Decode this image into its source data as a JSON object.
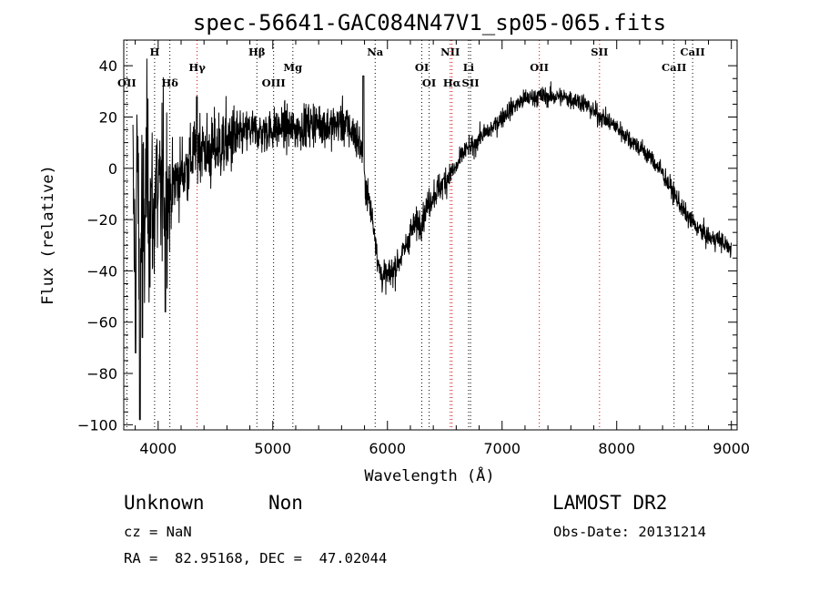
{
  "chart_data": {
    "type": "line",
    "title": "spec-56641-GAC084N47V1_sp05-065.fits",
    "xlabel": "Wavelength (Å)",
    "ylabel": "Flux (relative)",
    "xlim": [
      3700,
      9050
    ],
    "ylim": [
      -102,
      50
    ],
    "xticks": [
      4000,
      5000,
      6000,
      7000,
      8000,
      9000
    ],
    "yticks": [
      -100,
      -80,
      -60,
      -40,
      -20,
      0,
      20,
      40
    ],
    "grid": false,
    "series": [
      {
        "x": [
          3780,
          3800,
          3820,
          3840,
          3860,
          3880,
          3900,
          3920,
          3940,
          3960,
          3980,
          4000,
          4050,
          4100,
          4150,
          4200,
          4250,
          4300,
          4350,
          4400,
          4450,
          4500,
          4600,
          4700,
          4800,
          4900,
          5000,
          5100,
          5200,
          5300,
          5400,
          5500,
          5600,
          5700,
          5750,
          5790,
          5800,
          5850,
          5900,
          5920,
          5950,
          6000,
          6050,
          6100,
          6150,
          6200,
          6250,
          6300,
          6350,
          6400,
          6450,
          6500,
          6550,
          6600,
          6650,
          6700,
          6750,
          6800,
          6900,
          7000,
          7100,
          7200,
          7300,
          7400,
          7500,
          7600,
          7700,
          7800,
          7900,
          8000,
          8100,
          8200,
          8300,
          8400,
          8500,
          8600,
          8700,
          8800,
          8900,
          9000
        ],
        "y": [
          -5,
          -40,
          10,
          -60,
          0,
          -30,
          5,
          -20,
          -10,
          -25,
          0,
          -15,
          -5,
          -10,
          -5,
          -2,
          0,
          5,
          10,
          8,
          5,
          8,
          10,
          12,
          15,
          14,
          15,
          16,
          15,
          17,
          18,
          16,
          18,
          14,
          10,
          5,
          -5,
          -15,
          -28,
          -38,
          -42,
          -42,
          -40,
          -36,
          -32,
          -25,
          -22,
          -20,
          -15,
          -10,
          -8,
          -5,
          -2,
          0,
          5,
          8,
          8,
          12,
          15,
          20,
          24,
          27,
          28,
          28,
          28,
          27,
          26,
          22,
          19,
          16,
          12,
          8,
          4,
          -2,
          -10,
          -18,
          -23,
          -27,
          -28,
          -32
        ]
      }
    ],
    "spectral_lines": [
      {
        "label": "OII",
        "x": 3727,
        "red": false,
        "row": 3
      },
      {
        "label": "H",
        "x": 3969,
        "red": false,
        "row": 1
      },
      {
        "label": "Hδ",
        "x": 4102,
        "red": false,
        "row": 3
      },
      {
        "label": "Hγ",
        "x": 4340,
        "red": true,
        "row": 2
      },
      {
        "label": "Hβ",
        "x": 4861,
        "red": false,
        "row": 1
      },
      {
        "label": "OIII",
        "x": 5007,
        "red": false,
        "row": 3
      },
      {
        "label": "Mg",
        "x": 5175,
        "red": false,
        "row": 2
      },
      {
        "label": "Na",
        "x": 5893,
        "red": false,
        "row": 1
      },
      {
        "label": "OI",
        "x": 6300,
        "red": false,
        "row": 2
      },
      {
        "label": "OI",
        "x": 6364,
        "red": false,
        "row": 3
      },
      {
        "label": "NII",
        "x": 6548,
        "red": true,
        "row": 1
      },
      {
        "label": "Hα",
        "x": 6563,
        "red": true,
        "row": 3
      },
      {
        "label": "Li",
        "x": 6708,
        "red": false,
        "row": 2
      },
      {
        "label": "SII",
        "x": 6725,
        "red": false,
        "row": 3
      },
      {
        "label": "OII",
        "x": 7325,
        "red": true,
        "row": 2
      },
      {
        "label": "SII",
        "x": 7850,
        "red": true,
        "row": 1
      },
      {
        "label": "CaII",
        "x": 8500,
        "red": false,
        "row": 2
      },
      {
        "label": "CaII",
        "x": 8662,
        "red": false,
        "row": 1
      }
    ]
  },
  "info": {
    "classification": "Unknown",
    "subclass": "Non",
    "survey": "LAMOST DR2",
    "redshift": "cz = NaN",
    "obs_date": "Obs-Date: 20131214",
    "coords": "RA =  82.95168, DEC =  47.02044"
  },
  "colors": {
    "line": "#000000",
    "marker_dotted": "#000000",
    "marker_red": "#e00000"
  }
}
